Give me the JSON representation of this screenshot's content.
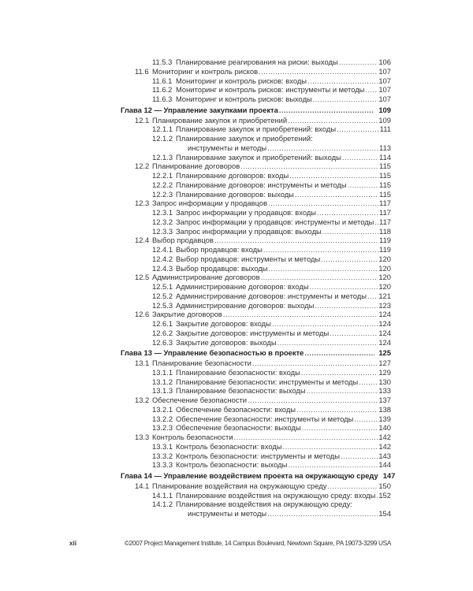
{
  "toc": [
    {
      "level": 3,
      "num": "11.5.3",
      "title": "Планирование реагирования на риски: выходы",
      "page": "106"
    },
    {
      "level": 2,
      "num": "11.6",
      "title": "Мониторинг и контроль рисков",
      "page": "107"
    },
    {
      "level": 3,
      "num": "11.6.1",
      "title": "Мониторинг и контроль рисков: входы",
      "page": "107"
    },
    {
      "level": 3,
      "num": "11.6.2",
      "title": "Мониторинг и контроль рисков: инструменты и методы",
      "page": "107"
    },
    {
      "level": 3,
      "num": "11.6.3",
      "title": "Мониторинг и контроль рисков: выходы",
      "page": "107"
    },
    {
      "level": 1,
      "num": "",
      "title": "Глава 12 — Управление закупками проекта",
      "page": "109"
    },
    {
      "level": 2,
      "num": "12.1",
      "title": "Планирование закупок и приобретений",
      "page": "109"
    },
    {
      "level": 3,
      "num": "12.1.1",
      "title": "Планирование закупок и приобретений: входы",
      "page": "111"
    },
    {
      "level": 3,
      "num": "12.1.2",
      "title": "Планирование закупок и приобретений:",
      "continuation": "инструменты и методы",
      "page": "113"
    },
    {
      "level": 3,
      "num": "12.1.3",
      "title": "Планирование закупок и приобретений: выходы",
      "page": "114"
    },
    {
      "level": 2,
      "num": "12.2",
      "title": "Планирование договоров",
      "page": "115"
    },
    {
      "level": 3,
      "num": "12.2.1",
      "title": "Планирование договоров: входы",
      "page": "115"
    },
    {
      "level": 3,
      "num": "12.2.2",
      "title": "Планирование договоров: инструменты и методы",
      "page": "115"
    },
    {
      "level": 3,
      "num": "12.2.3",
      "title": "Планирование договоров: выходы",
      "page": "115"
    },
    {
      "level": 2,
      "num": "12.3",
      "title": "Запрос информации у продавцов",
      "page": "117"
    },
    {
      "level": 3,
      "num": "12.3.1",
      "title": "Запрос информации у продавцов: входы",
      "page": "117"
    },
    {
      "level": 3,
      "num": "12.3.2",
      "title": "Запрос информации у продавцов: инструменты и методы",
      "page": "117"
    },
    {
      "level": 3,
      "num": "12.3.3",
      "title": "Запрос информации у продавцов: выходы",
      "page": "118"
    },
    {
      "level": 2,
      "num": "12.4",
      "title": "Выбор продавцов",
      "page": "119"
    },
    {
      "level": 3,
      "num": "12.4.1",
      "title": "Выбор продавцов: входы",
      "page": "119"
    },
    {
      "level": 3,
      "num": "12.4.2",
      "title": "Выбор продавцов: инструменты и методы",
      "page": "120"
    },
    {
      "level": 3,
      "num": "12.4.3",
      "title": "Выбор продавцов: выходы",
      "page": "120"
    },
    {
      "level": 2,
      "num": "12.5",
      "title": "Администрирование договоров",
      "page": "120"
    },
    {
      "level": 3,
      "num": "12.5.1",
      "title": "Администрирование договоров: входы",
      "page": "120"
    },
    {
      "level": 3,
      "num": "12.5.2",
      "title": "Администрирование договоров: инструменты и методы",
      "page": "121"
    },
    {
      "level": 3,
      "num": "12.5.3",
      "title": "Администрирование договоров: выходы",
      "page": "123"
    },
    {
      "level": 2,
      "num": "12.6",
      "title": "Закрытие договоров",
      "page": "124"
    },
    {
      "level": 3,
      "num": "12.6.1",
      "title": "Закрытие договоров: входы",
      "page": "124"
    },
    {
      "level": 3,
      "num": "12.6.2",
      "title": "Закрытие договоров: инструменты и методы",
      "page": "124"
    },
    {
      "level": 3,
      "num": "12.6.3",
      "title": "Закрытие договоров: выходы",
      "page": "124"
    },
    {
      "level": 1,
      "num": "",
      "title": "Глава 13 — Управление безопасностью в проекте",
      "page": "125"
    },
    {
      "level": 2,
      "num": "13.1",
      "title": "Планирование безопасности",
      "page": "127"
    },
    {
      "level": 3,
      "num": "13.1.1",
      "title": "Планирование безопасности: входы",
      "page": "129"
    },
    {
      "level": 3,
      "num": "13.1.2",
      "title": "Планирование безопасности: инструменты и методы",
      "page": "130"
    },
    {
      "level": 3,
      "num": "13.1.3",
      "title": "Планирование безопасности: выходы",
      "page": "133"
    },
    {
      "level": 2,
      "num": "13.2",
      "title": "Обеспечение безопасности",
      "page": "137"
    },
    {
      "level": 3,
      "num": "13.2.1",
      "title": "Обеспечение безопасности: входы",
      "page": "138"
    },
    {
      "level": 3,
      "num": "13.2.2",
      "title": "Обеспечение безопасности: инструменты и методы",
      "page": "139"
    },
    {
      "level": 3,
      "num": "13.2.3",
      "title": "Обеспечение безопасности: выходы",
      "page": "140"
    },
    {
      "level": 2,
      "num": "13.3",
      "title": "Контроль безопасности",
      "page": "142"
    },
    {
      "level": 3,
      "num": "13.3.1",
      "title": "Контроль безопасности: входы",
      "page": "142"
    },
    {
      "level": 3,
      "num": "13.3.2",
      "title": "Контроль безопасности: инструменты и методы",
      "page": "143"
    },
    {
      "level": 3,
      "num": "13.3.3",
      "title": "Контроль безопасности: выходы",
      "page": "144"
    },
    {
      "level": 1,
      "num": "",
      "title": "Глава 14 — Управление воздействием проекта на окружающую среду",
      "page": "147"
    },
    {
      "level": 2,
      "num": "14.1",
      "title": "Планирование воздействия на окружающую среду",
      "page": "150"
    },
    {
      "level": 3,
      "num": "14.1.1",
      "title": "Планирование воздействия на окружающую среду: входы",
      "page": "152"
    },
    {
      "level": 3,
      "num": "14.1.2",
      "title": "Планирование воздействия на окружающую среду:",
      "continuation": "инструменты и методы",
      "page": "154"
    }
  ],
  "footer": {
    "page_number": "xii",
    "copyright": "©2007 Project Management Institute, 14 Campus Boulevard, Newtown Square, PA 19073-3299 USA"
  }
}
